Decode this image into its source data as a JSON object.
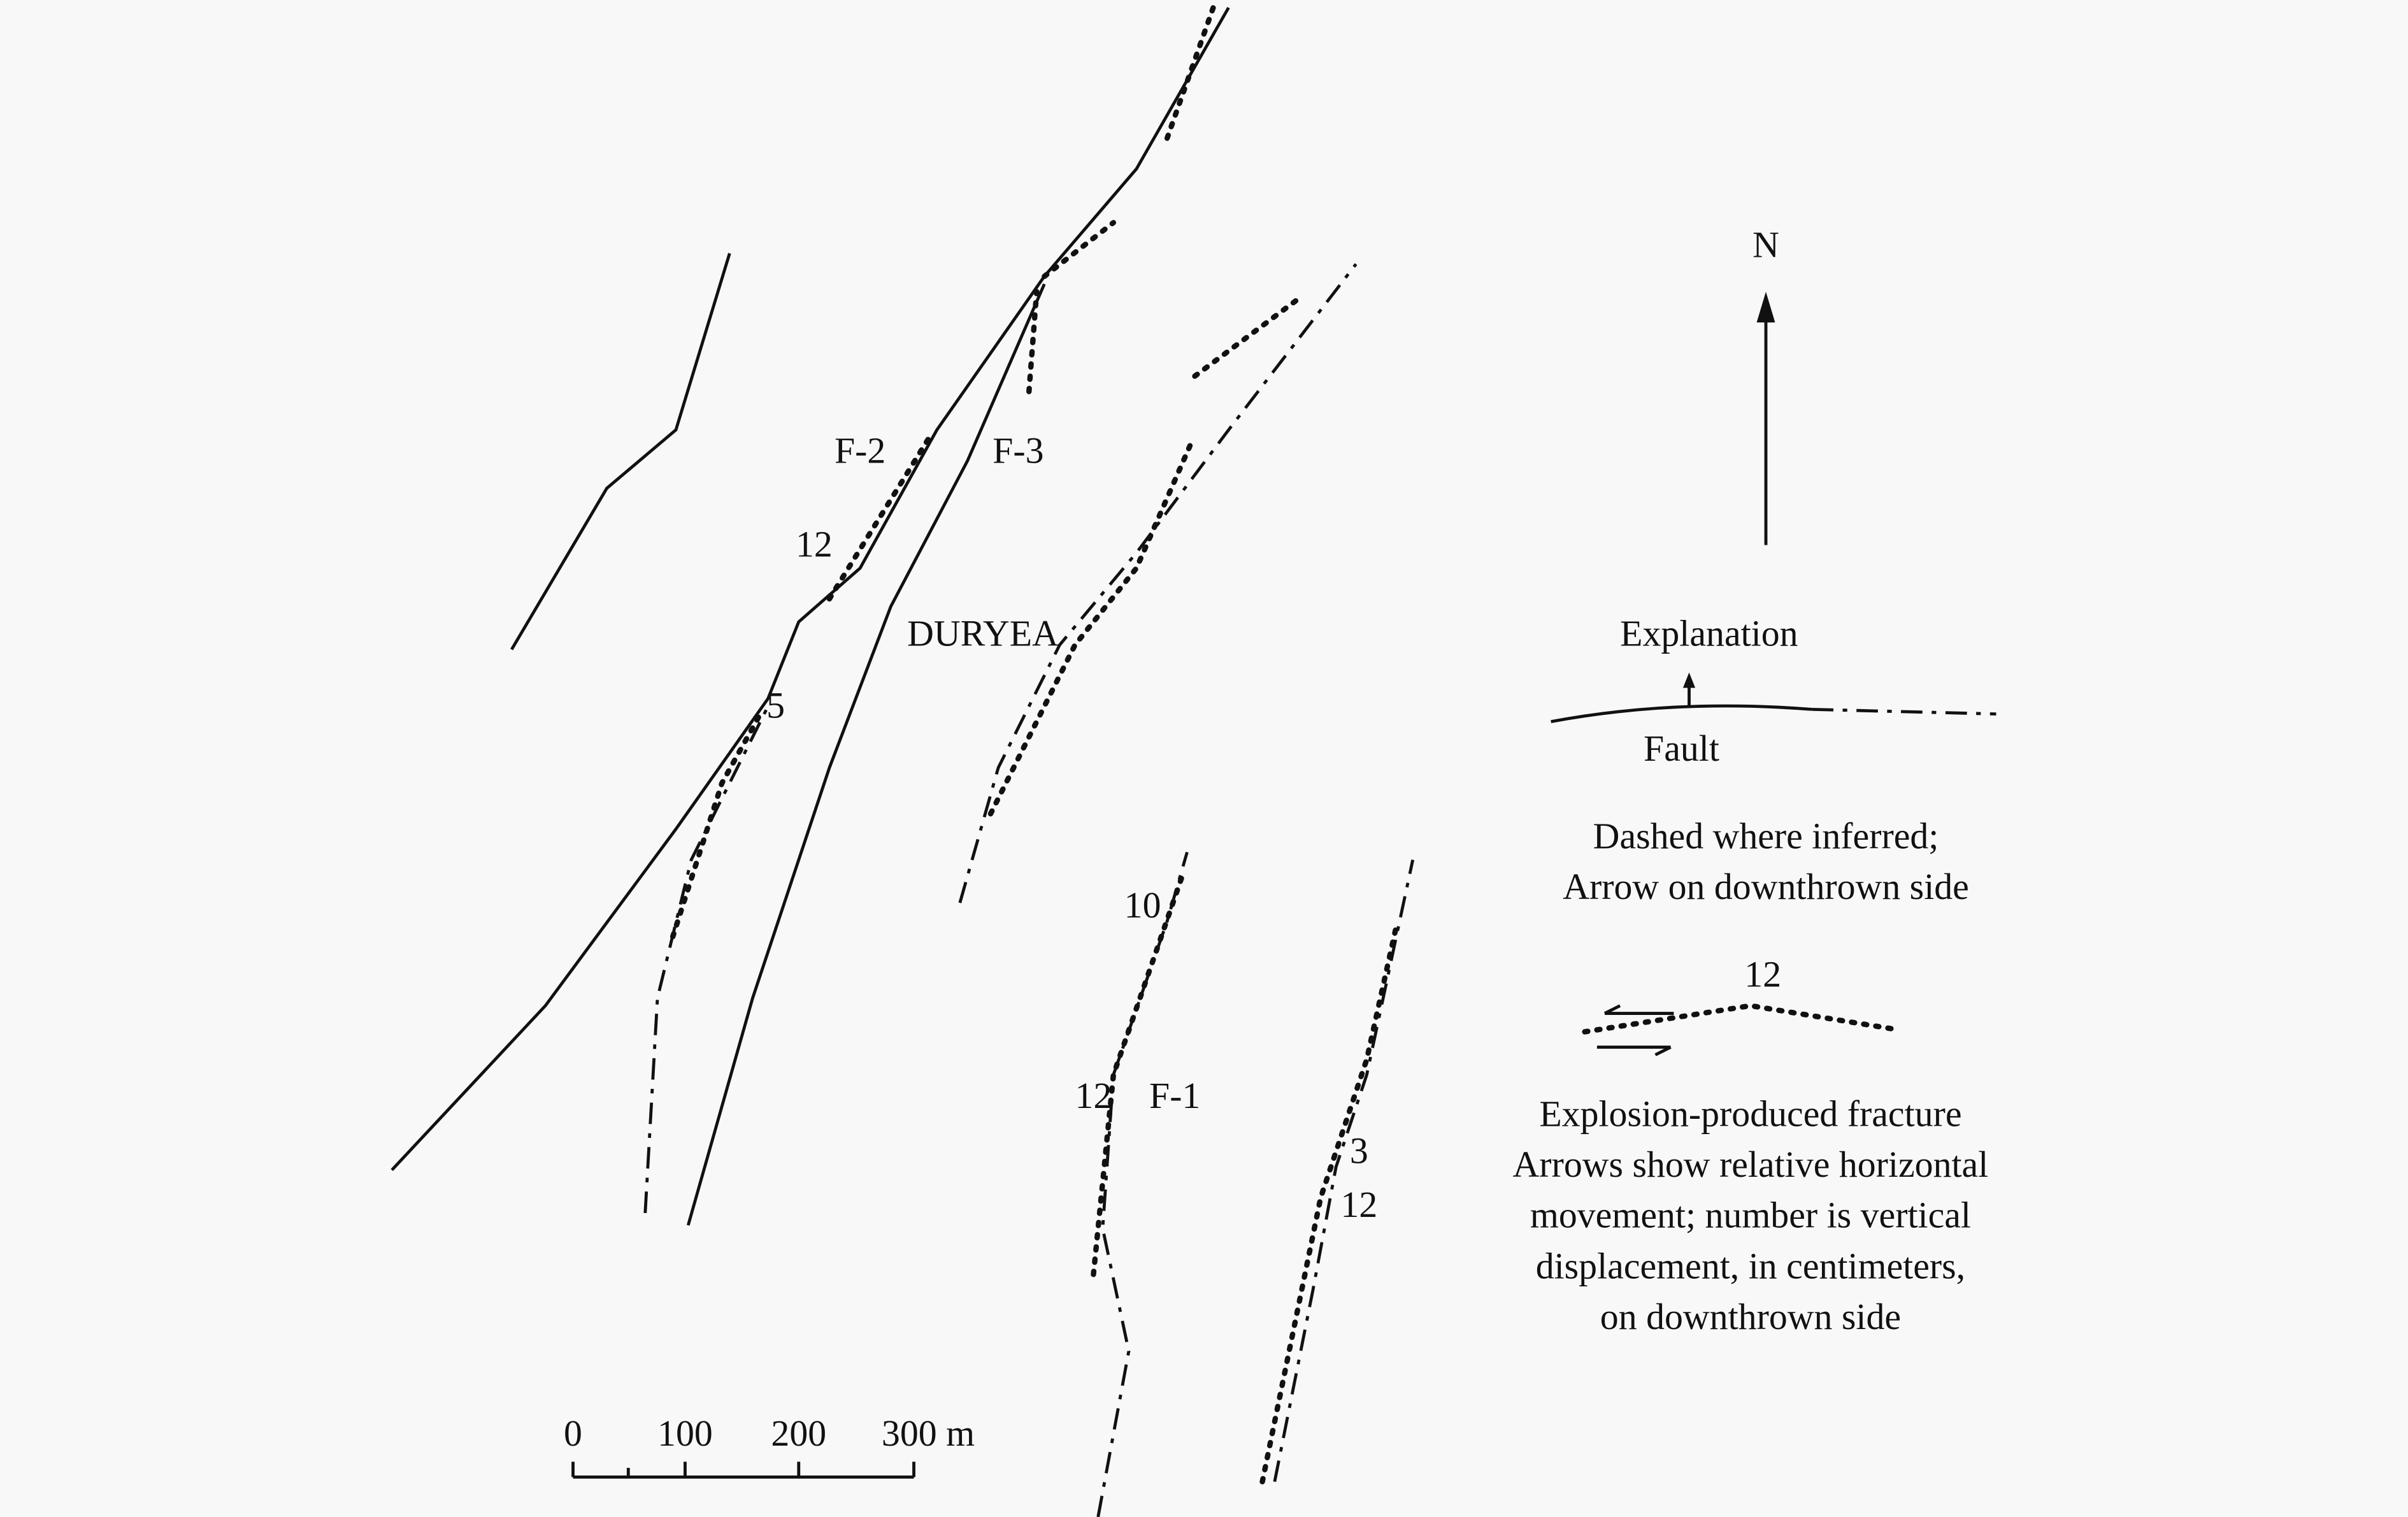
{
  "north": "N",
  "map_labels": [
    "F-2",
    "F-3",
    "12",
    "DURYEA",
    "5",
    "10",
    "12",
    "F-1",
    "3",
    "12"
  ],
  "scale_bar": {
    "labels": [
      "0",
      "100",
      "200",
      "300 m"
    ]
  },
  "legend": {
    "title": "Explanation",
    "fault": {
      "label": "Fault",
      "notes": [
        "Dashed where inferred;",
        "Arrow on downthrown side"
      ]
    },
    "fracture": {
      "displacement": "12",
      "notes": [
        "Explosion-produced fracture",
        "Arrows show relative horizontal",
        "movement; number is vertical",
        "displacement, in centimeters,",
        "on downthrown side"
      ]
    }
  }
}
